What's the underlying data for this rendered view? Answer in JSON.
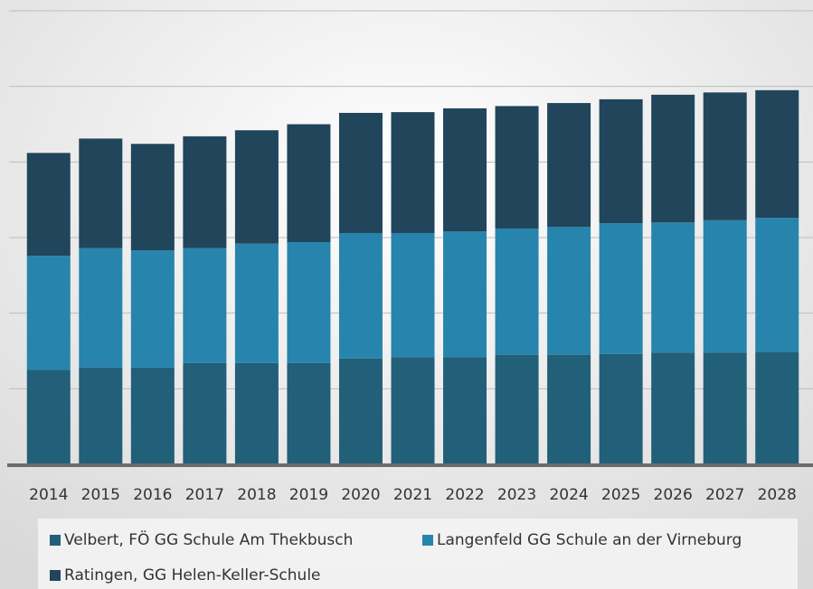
{
  "chart_data": {
    "type": "stacked_bar",
    "categories": [
      "2014",
      "2015",
      "2016",
      "2017",
      "2018",
      "2019",
      "2020",
      "2021",
      "2022",
      "2023",
      "2024",
      "2025",
      "2026",
      "2027",
      "2028"
    ],
    "series": [
      {
        "name": "Velbert, FÖ GG Schule Am Thekbusch",
        "color": "#225f79",
        "values": [
          1.25,
          1.28,
          1.28,
          1.34,
          1.34,
          1.34,
          1.4,
          1.42,
          1.42,
          1.45,
          1.45,
          1.46,
          1.48,
          1.48,
          1.49
        ]
      },
      {
        "name": "Langenfeld GG Schule an der Virneburg",
        "color": "#2784ad",
        "values": [
          1.51,
          1.58,
          1.55,
          1.52,
          1.58,
          1.6,
          1.66,
          1.64,
          1.66,
          1.67,
          1.69,
          1.73,
          1.72,
          1.75,
          1.77
        ]
      },
      {
        "name": "Ratingen, GG Helen-Keller-Schule",
        "color": "#21455b",
        "values": [
          1.36,
          1.45,
          1.41,
          1.48,
          1.5,
          1.56,
          1.59,
          1.6,
          1.63,
          1.62,
          1.64,
          1.64,
          1.69,
          1.69,
          1.69
        ]
      }
    ],
    "ylim": [
      0,
      6
    ],
    "yticks": [
      0,
      1,
      2,
      3,
      4,
      5,
      6
    ],
    "grid": true,
    "legend": "bottom"
  }
}
